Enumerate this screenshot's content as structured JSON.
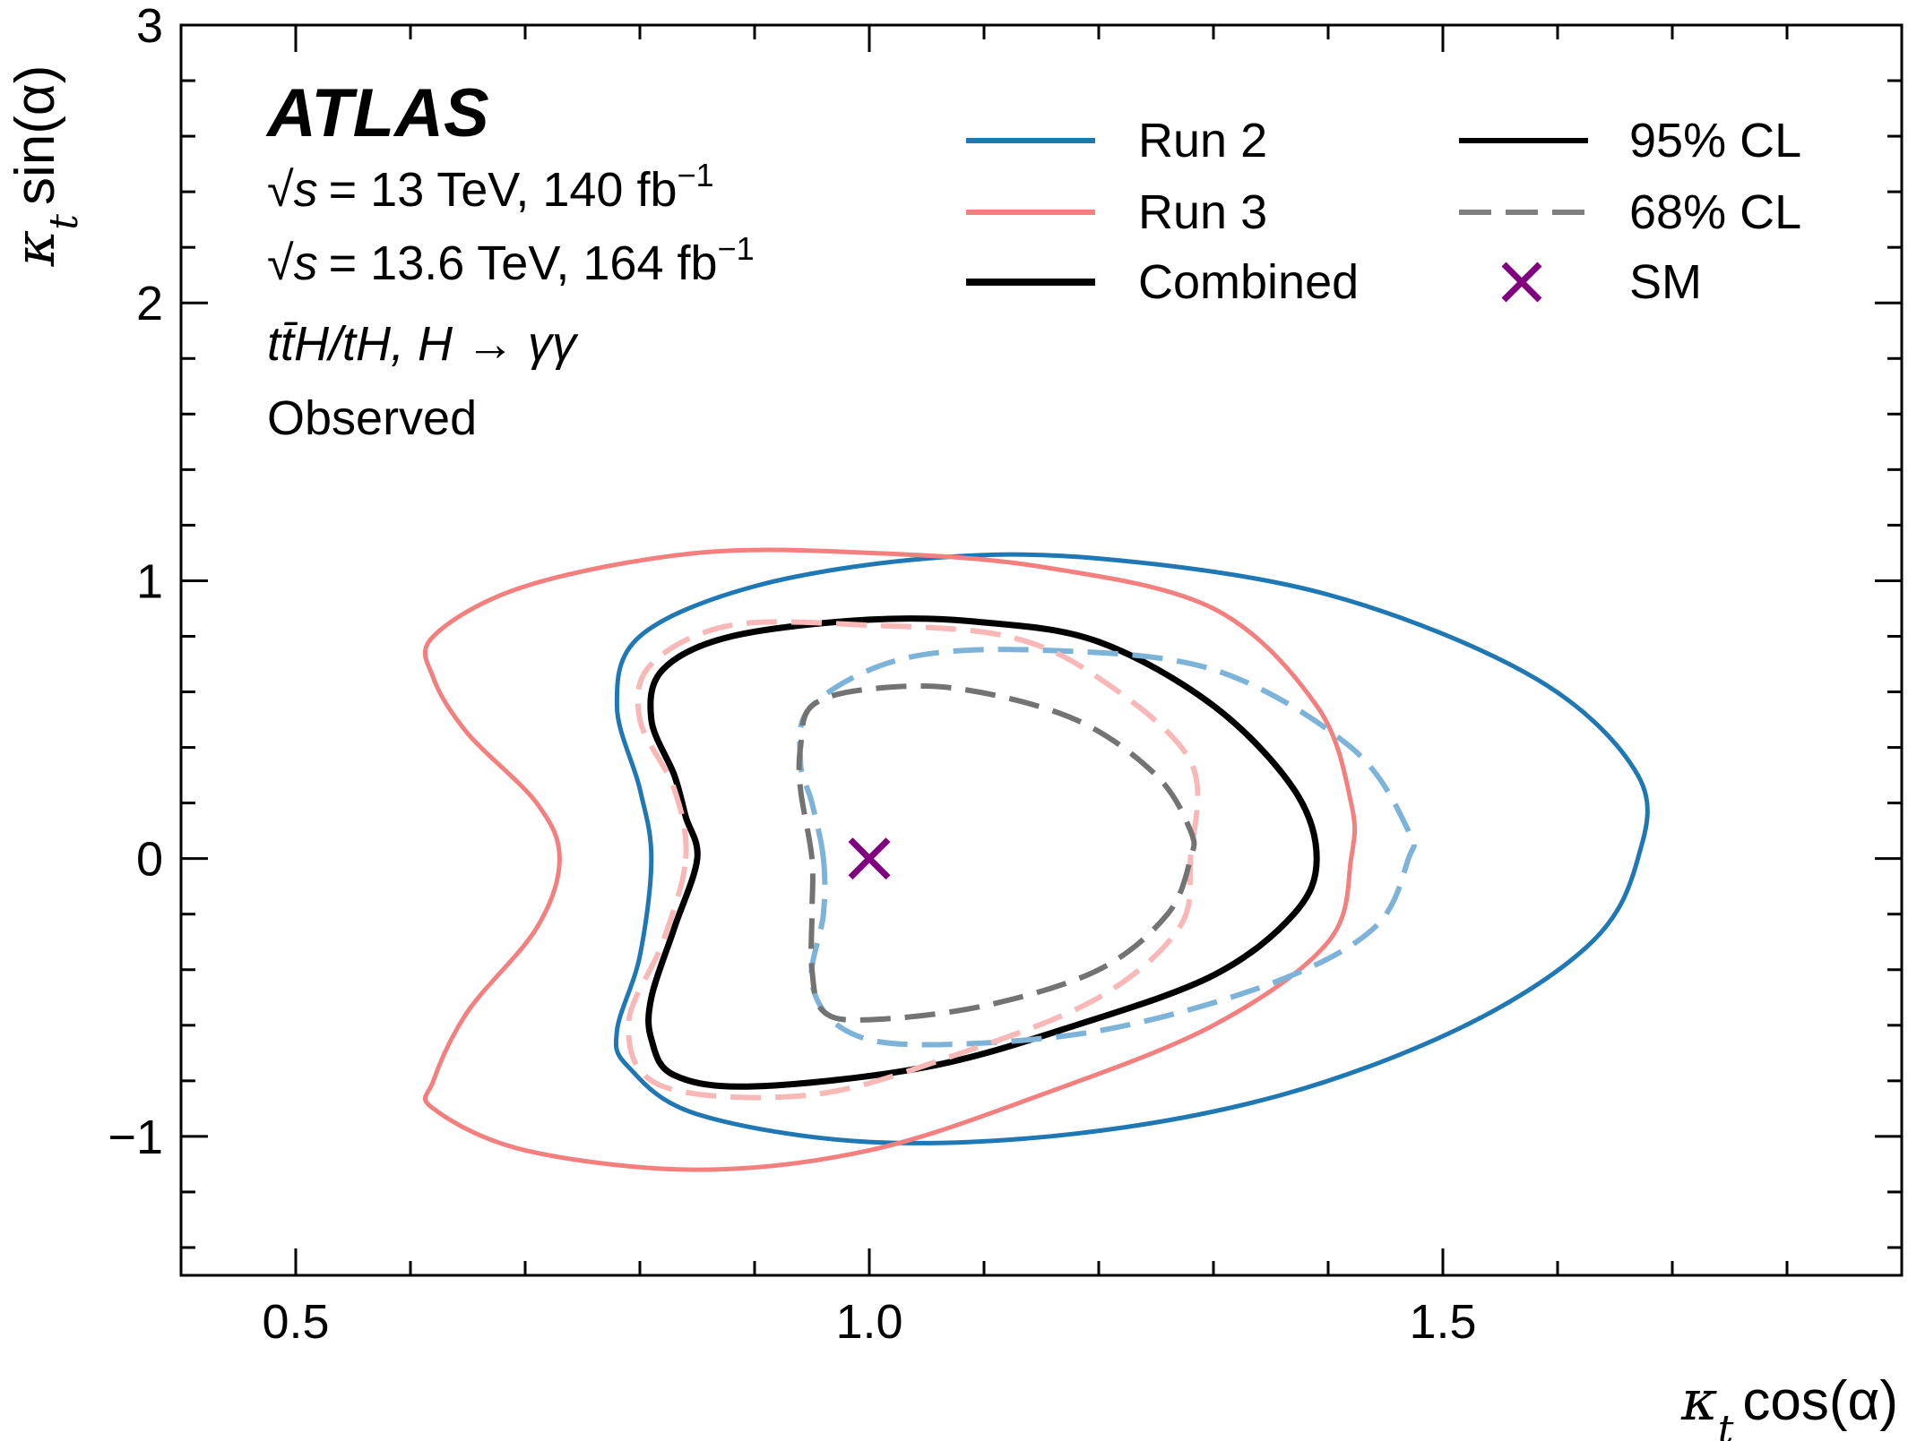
{
  "chart_data": {
    "type": "line",
    "xlabel": {
      "var": "κ",
      "sub": "t",
      "func": "cos(α)"
    },
    "ylabel": {
      "var": "κ",
      "sub": "t",
      "func": "sin(α)"
    },
    "xlim": [
      0.4,
      1.9
    ],
    "ylim": [
      -1.5,
      3
    ],
    "xticks": [
      0.5,
      1.0,
      1.5
    ],
    "xtick_labels": [
      "0.5",
      "1.0",
      "1.5"
    ],
    "yticks": [
      -1,
      0,
      1,
      2,
      3
    ],
    "ytick_labels": [
      "−1",
      "0",
      "1",
      "2",
      "3"
    ],
    "grid": false,
    "legend_position": "top-right",
    "annotations": {
      "experiment": "ATLAS",
      "line1_energy": "= 13 TeV,  140 fb",
      "line1_exp": "−1",
      "line2_energy": "= 13.6 TeV,  164 fb",
      "line2_exp": "−1",
      "sqrt_s": "√s",
      "process": "tt̄H/tH, H → γγ",
      "status": "Observed"
    },
    "legend": [
      {
        "label": "Run 2",
        "color": "#1f77b4",
        "style": "solid"
      },
      {
        "label": "Run 3",
        "color": "#f47f7f",
        "style": "solid"
      },
      {
        "label": "Combined",
        "color": "#000000",
        "style": "solid"
      },
      {
        "label": "95% CL",
        "color": "#000000",
        "style": "solid"
      },
      {
        "label": "68% CL",
        "color": "#7f7f7f",
        "style": "dashed"
      },
      {
        "label": "SM",
        "color": "#800080",
        "style": "marker-x"
      }
    ],
    "series": [
      {
        "name": "Run 2",
        "cl": "95% CL",
        "color": "#1f77b4",
        "dash": false,
        "points": [
          [
            0.81,
            0.0
          ],
          [
            0.8,
            0.25
          ],
          [
            0.78,
            0.55
          ],
          [
            0.8,
            0.8
          ],
          [
            0.9,
            0.98
          ],
          [
            1.05,
            1.08
          ],
          [
            1.2,
            1.08
          ],
          [
            1.4,
            0.95
          ],
          [
            1.58,
            0.65
          ],
          [
            1.67,
            0.3
          ],
          [
            1.67,
            0.0
          ],
          [
            1.63,
            -0.3
          ],
          [
            1.52,
            -0.6
          ],
          [
            1.36,
            -0.85
          ],
          [
            1.18,
            -0.99
          ],
          [
            1.0,
            -1.02
          ],
          [
            0.85,
            -0.92
          ],
          [
            0.79,
            -0.75
          ],
          [
            0.78,
            -0.62
          ],
          [
            0.8,
            -0.35
          ],
          [
            0.81,
            0.0
          ]
        ]
      },
      {
        "name": "Run 3",
        "cl": "95% CL",
        "color": "#f47f7f",
        "dash": false,
        "points": [
          [
            0.73,
            0.0
          ],
          [
            0.71,
            0.2
          ],
          [
            0.65,
            0.45
          ],
          [
            0.62,
            0.65
          ],
          [
            0.62,
            0.8
          ],
          [
            0.7,
            0.98
          ],
          [
            0.85,
            1.1
          ],
          [
            1.0,
            1.1
          ],
          [
            1.15,
            1.05
          ],
          [
            1.3,
            0.9
          ],
          [
            1.39,
            0.55
          ],
          [
            1.42,
            0.2
          ],
          [
            1.42,
            0.0
          ],
          [
            1.4,
            -0.3
          ],
          [
            1.3,
            -0.6
          ],
          [
            1.15,
            -0.85
          ],
          [
            1.0,
            -1.05
          ],
          [
            0.85,
            -1.12
          ],
          [
            0.7,
            -1.05
          ],
          [
            0.62,
            -0.9
          ],
          [
            0.62,
            -0.8
          ],
          [
            0.65,
            -0.55
          ],
          [
            0.71,
            -0.25
          ],
          [
            0.73,
            0.0
          ]
        ]
      },
      {
        "name": "Combined",
        "cl": "95% CL",
        "color": "#000000",
        "dash": false,
        "points": [
          [
            0.85,
            0.0
          ],
          [
            0.84,
            0.15
          ],
          [
            0.83,
            0.3
          ],
          [
            0.81,
            0.5
          ],
          [
            0.82,
            0.68
          ],
          [
            0.88,
            0.8
          ],
          [
            1.0,
            0.86
          ],
          [
            1.1,
            0.85
          ],
          [
            1.2,
            0.78
          ],
          [
            1.3,
            0.55
          ],
          [
            1.37,
            0.25
          ],
          [
            1.39,
            0.0
          ],
          [
            1.37,
            -0.2
          ],
          [
            1.3,
            -0.42
          ],
          [
            1.18,
            -0.6
          ],
          [
            1.05,
            -0.75
          ],
          [
            0.9,
            -0.82
          ],
          [
            0.83,
            -0.78
          ],
          [
            0.81,
            -0.65
          ],
          [
            0.81,
            -0.5
          ],
          [
            0.83,
            -0.25
          ],
          [
            0.85,
            0.0
          ]
        ]
      },
      {
        "name": "Run 2",
        "cl": "68% CL",
        "color": "#7eb3d9",
        "dash": true,
        "points": [
          [
            0.96,
            0.0
          ],
          [
            0.95,
            0.2
          ],
          [
            0.94,
            0.35
          ],
          [
            0.95,
            0.55
          ],
          [
            1.03,
            0.72
          ],
          [
            1.15,
            0.75
          ],
          [
            1.3,
            0.68
          ],
          [
            1.42,
            0.4
          ],
          [
            1.47,
            0.1
          ],
          [
            1.47,
            0.0
          ],
          [
            1.44,
            -0.25
          ],
          [
            1.35,
            -0.45
          ],
          [
            1.2,
            -0.62
          ],
          [
            1.05,
            -0.67
          ],
          [
            0.98,
            -0.62
          ],
          [
            0.95,
            -0.45
          ],
          [
            0.96,
            -0.2
          ],
          [
            0.96,
            0.0
          ]
        ]
      },
      {
        "name": "Run 3",
        "cl": "68% CL",
        "color": "#f9b8b8",
        "dash": true,
        "points": [
          [
            0.84,
            0.0
          ],
          [
            0.83,
            0.25
          ],
          [
            0.8,
            0.5
          ],
          [
            0.81,
            0.7
          ],
          [
            0.88,
            0.84
          ],
          [
            1.0,
            0.84
          ],
          [
            1.12,
            0.8
          ],
          [
            1.2,
            0.65
          ],
          [
            1.28,
            0.35
          ],
          [
            1.28,
            0.0
          ],
          [
            1.27,
            -0.25
          ],
          [
            1.2,
            -0.5
          ],
          [
            1.08,
            -0.7
          ],
          [
            0.95,
            -0.85
          ],
          [
            0.82,
            -0.82
          ],
          [
            0.79,
            -0.6
          ],
          [
            0.82,
            -0.3
          ],
          [
            0.84,
            0.0
          ]
        ]
      },
      {
        "name": "Combined",
        "cl": "68% CL",
        "color": "#737373",
        "dash": true,
        "points": [
          [
            0.95,
            0.0
          ],
          [
            0.94,
            0.25
          ],
          [
            0.94,
            0.4
          ],
          [
            0.95,
            0.55
          ],
          [
            1.0,
            0.61
          ],
          [
            1.08,
            0.61
          ],
          [
            1.18,
            0.5
          ],
          [
            1.25,
            0.3
          ],
          [
            1.28,
            0.1
          ],
          [
            1.28,
            0.0
          ],
          [
            1.26,
            -0.2
          ],
          [
            1.2,
            -0.4
          ],
          [
            1.1,
            -0.53
          ],
          [
            1.0,
            -0.58
          ],
          [
            0.96,
            -0.55
          ],
          [
            0.95,
            -0.4
          ],
          [
            0.95,
            -0.2
          ],
          [
            0.95,
            0.0
          ]
        ]
      }
    ],
    "sm_point": {
      "label": "SM",
      "x": 1.0,
      "y": 0.0,
      "color": "#800080"
    }
  }
}
